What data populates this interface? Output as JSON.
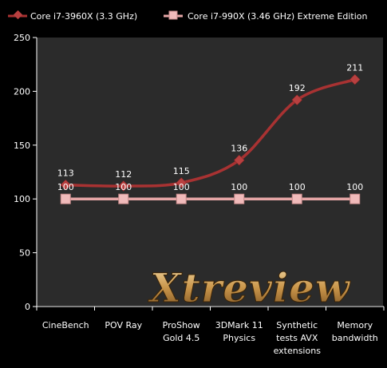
{
  "chart_data": {
    "type": "line",
    "categories": [
      "CineBench",
      "POV Ray",
      "ProShow Gold 4.5",
      "3DMark 11 Physics",
      "Synthetic tests AVX extensions",
      "Memory bandwidth"
    ],
    "category_lines": [
      [
        "CineBench"
      ],
      [
        "POV Ray"
      ],
      [
        "ProShow",
        "Gold 4.5"
      ],
      [
        "3DMark 11",
        "Physics"
      ],
      [
        "Synthetic",
        "tests AVX",
        "extensions"
      ],
      [
        "Memory",
        "bandwidth"
      ]
    ],
    "series": [
      {
        "name": "Core i7-3960X (3.3 GHz)",
        "values": [
          113,
          112,
          115,
          136,
          192,
          211
        ],
        "color": "#a83232",
        "marker": "diamond"
      },
      {
        "name": "Core i7-990X (3.46 GHz) Extreme Edition",
        "values": [
          100,
          100,
          100,
          100,
          100,
          100
        ],
        "color": "#e6a6a6",
        "marker": "square"
      }
    ],
    "ylim": [
      0,
      250
    ],
    "yticks": [
      0,
      50,
      100,
      150,
      200,
      250
    ],
    "grid": false,
    "legend": "top",
    "plot_background": "#2b2b2b",
    "watermark": "Xtreview"
  }
}
